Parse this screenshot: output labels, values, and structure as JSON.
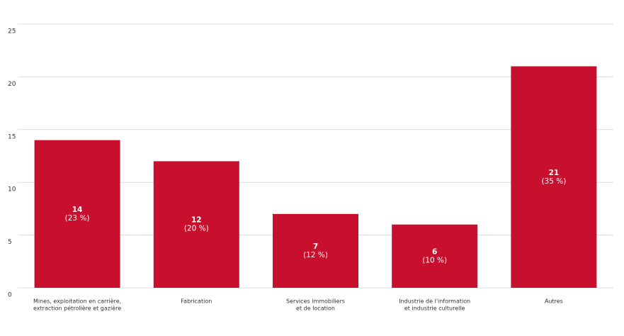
{
  "chart_data": {
    "type": "bar",
    "categories": [
      [
        "Mines, exploitation en carrière,",
        "extraction pétrolière et gazière"
      ],
      [
        "Fabrication"
      ],
      [
        "Services immobiliers",
        "et de location"
      ],
      [
        "Industrie de l'information",
        "et industrie culturelle"
      ],
      [
        "Autres"
      ]
    ],
    "values": [
      14,
      12,
      7,
      6,
      21
    ],
    "shares": [
      23,
      20,
      12,
      10,
      35
    ],
    "share_labels": [
      "(23 %)",
      "(20 %)",
      "(12 %)",
      "(10 %)",
      "(35 %)"
    ],
    "color": "#c8102e",
    "ylim": [
      0,
      25
    ],
    "yticks": [
      0,
      5,
      10,
      15,
      20,
      25
    ],
    "grid": true
  }
}
